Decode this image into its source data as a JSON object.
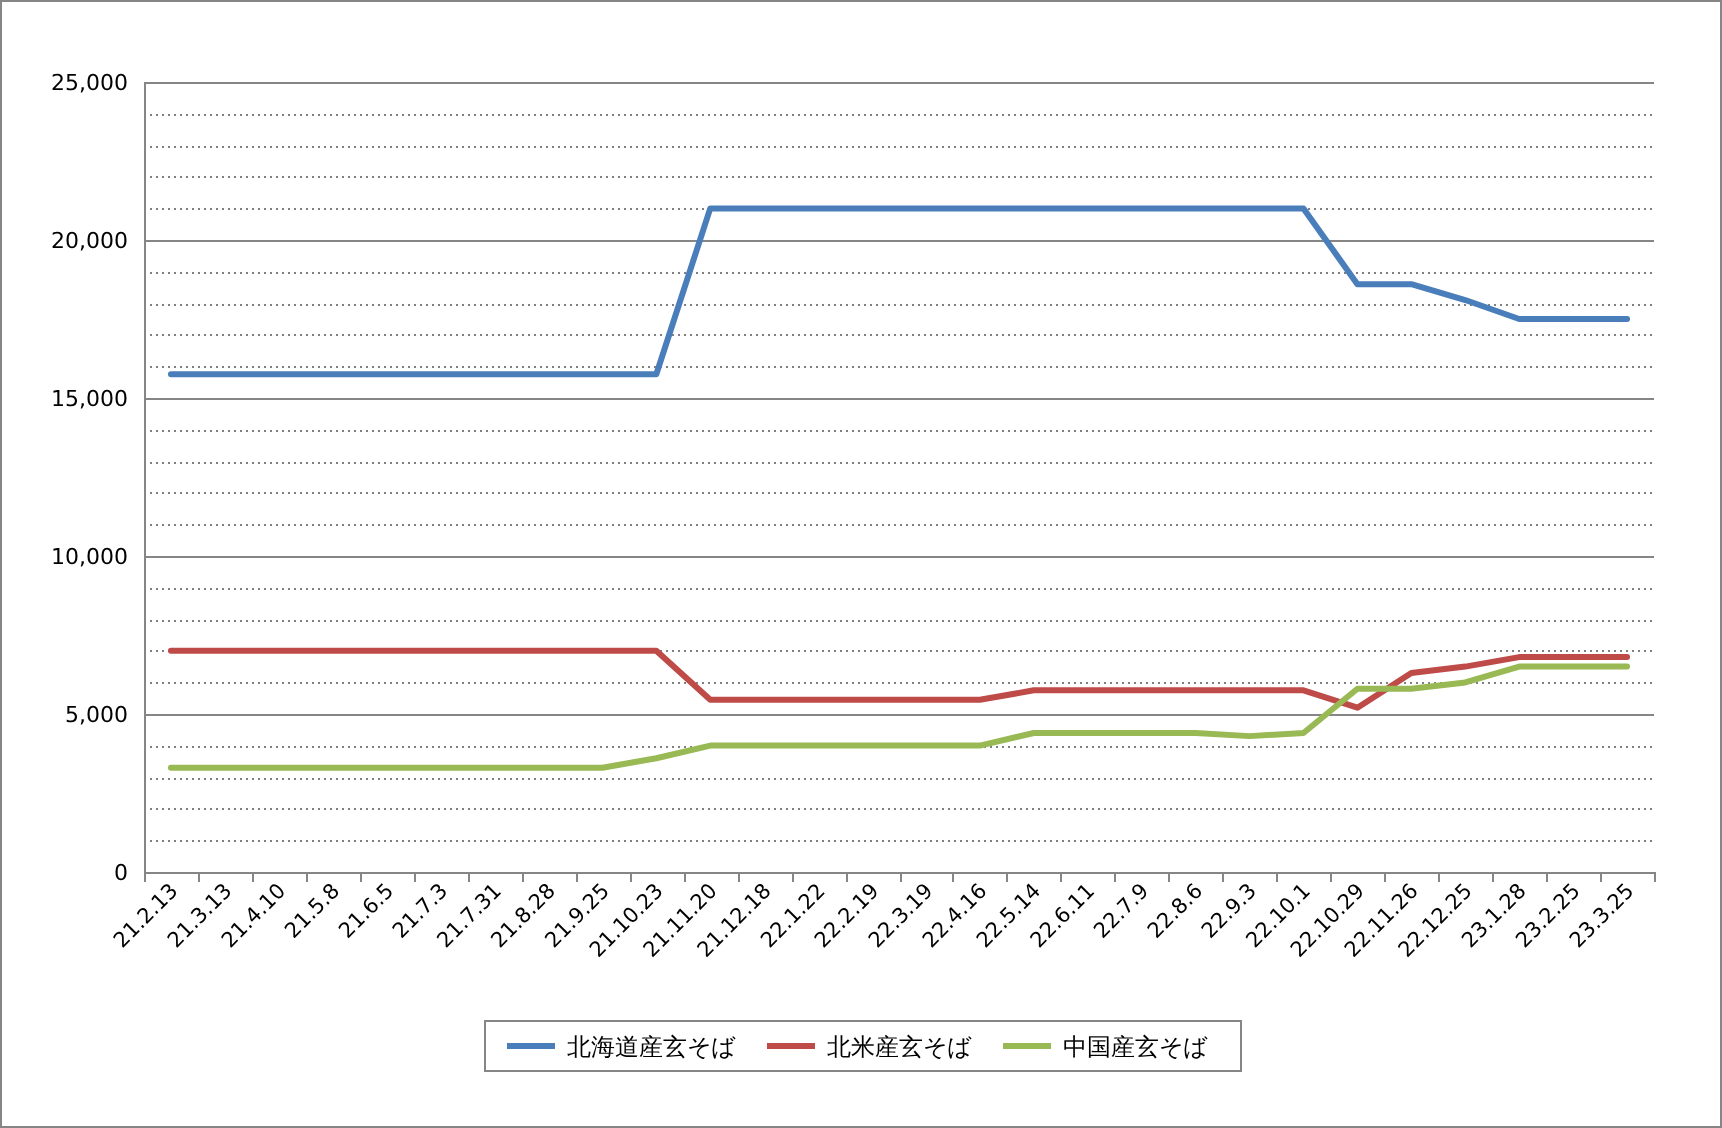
{
  "chart_data": {
    "type": "line",
    "categories": [
      "21.2.13",
      "21.3.13",
      "21.4.10",
      "21.5.8",
      "21.6.5",
      "21.7.3",
      "21.7.31",
      "21.8.28",
      "21.9.25",
      "21.10.23",
      "21.11.20",
      "21.12.18",
      "22.1.22",
      "22.2.19",
      "22.3.19",
      "22.4.16",
      "22.5.14",
      "22.6.11",
      "22.7.9",
      "22.8.6",
      "22.9.3",
      "22.10.1",
      "22.10.29",
      "22.11.26",
      "22.12.25",
      "23.1.28",
      "23.2.25",
      "23.3.25"
    ],
    "series": [
      {
        "name": "北海道産玄そば",
        "color": "#4a7ebb",
        "values": [
          15750,
          15750,
          15750,
          15750,
          15750,
          15750,
          15750,
          15750,
          15750,
          15750,
          21000,
          21000,
          21000,
          21000,
          21000,
          21000,
          21000,
          21000,
          21000,
          21000,
          21000,
          21000,
          18600,
          18600,
          18100,
          17500,
          17500,
          17500
        ]
      },
      {
        "name": "北米産玄そば",
        "color": "#be4b48",
        "values": [
          7000,
          7000,
          7000,
          7000,
          7000,
          7000,
          7000,
          7000,
          7000,
          7000,
          5450,
          5450,
          5450,
          5450,
          5450,
          5450,
          5750,
          5750,
          5750,
          5750,
          5750,
          5750,
          5200,
          6300,
          6500,
          6800,
          6800,
          6800
        ]
      },
      {
        "name": "中国産玄そば",
        "color": "#98b954",
        "values": [
          3300,
          3300,
          3300,
          3300,
          3300,
          3300,
          3300,
          3300,
          3300,
          3600,
          4000,
          4000,
          4000,
          4000,
          4000,
          4000,
          4400,
          4400,
          4400,
          4400,
          4300,
          4400,
          5800,
          5800,
          6000,
          6500,
          6500,
          6500
        ]
      }
    ],
    "ylim": [
      0,
      25000
    ],
    "yticks": [
      0,
      {
        "value": 5000,
        "label": "5,000"
      },
      {
        "value": 10000,
        "label": "10,000"
      },
      {
        "value": 15000,
        "label": "15,000"
      },
      {
        "value": 20000,
        "label": "20,000"
      },
      {
        "value": 25000,
        "label": "25,000"
      }
    ],
    "grid": "y",
    "legend": "bottom",
    "marker": "none",
    "line_style": "solid"
  }
}
